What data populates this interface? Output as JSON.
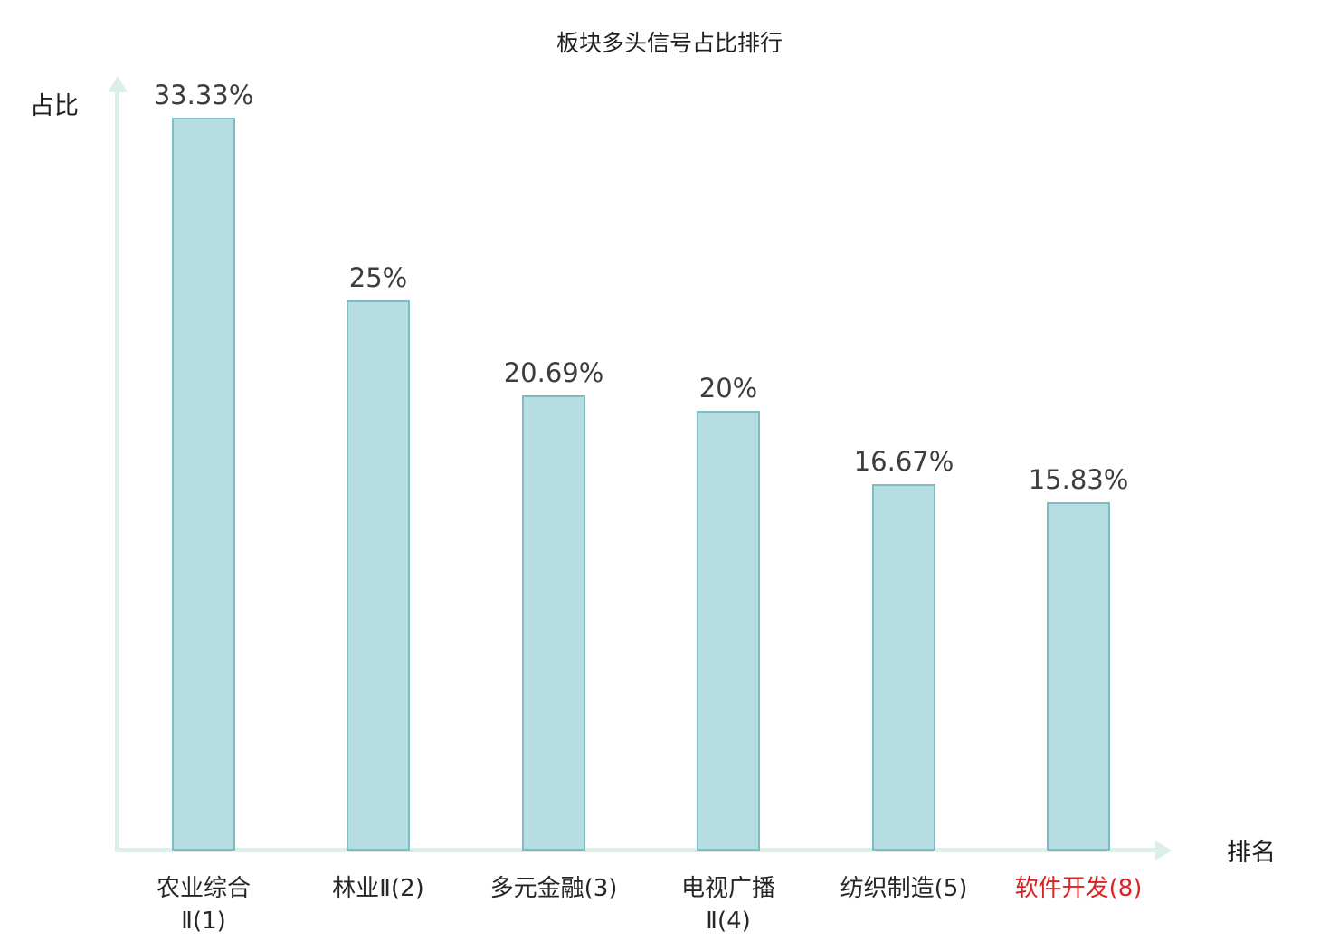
{
  "chart": {
    "title": "板块多头信号占比排行",
    "y_axis_title": "占比",
    "x_axis_title": "排名"
  },
  "chart_data": {
    "type": "bar",
    "title": "板块多头信号占比排行",
    "xlabel": "排名",
    "ylabel": "占比",
    "categories": [
      "农业综合\nⅡ(1)",
      "林业Ⅱ(2)",
      "多元金融(3)",
      "电视广播\nⅡ(4)",
      "纺织制造(5)",
      "软件开发(8)"
    ],
    "values": [
      33.33,
      25,
      20.69,
      20,
      16.67,
      15.83
    ],
    "value_labels": [
      "33.33%",
      "25%",
      "20.69%",
      "20%",
      "16.67%",
      "15.83%"
    ],
    "ylim": [
      0,
      35
    ],
    "grid": false,
    "legend": "none",
    "bar_color": "#b6dde2",
    "bar_border_color": "#7fbdc5",
    "axis_color": "#d9efe7",
    "text_color": "#3d3d3d",
    "highlight_index": 5,
    "highlight_color": "#e02020"
  }
}
